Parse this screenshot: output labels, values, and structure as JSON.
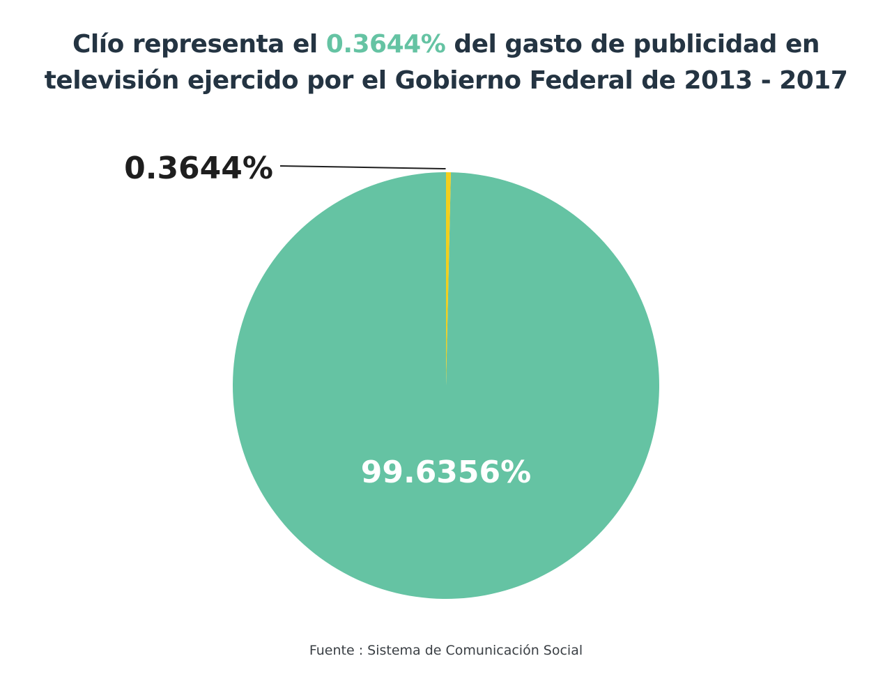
{
  "title": {
    "part1": "Clío representa el ",
    "highlight": "0.3644%",
    "part2": " del gasto de publicidad en",
    "line2": "televisión ejercido por el Gobierno Federal de  2013 - 2017"
  },
  "source": "Fuente : Sistema de Comunicación Social",
  "colors": {
    "title": "#243442",
    "highlight": "#65c3a3",
    "main_slice": "#65c3a3",
    "small_slice": "#f2cf1d",
    "callout_text": "#1e1e1e",
    "inside_label": "#ffffff"
  },
  "chart_data": {
    "type": "pie",
    "title": "Clío representa el 0.3644% del gasto de publicidad en televisión ejercido por el Gobierno Federal de 2013 - 2017",
    "categories": [
      "Clío",
      ""
    ],
    "values": [
      0.3644,
      99.6356
    ],
    "labels": [
      "0.3644%",
      "99.6356%"
    ],
    "legend": "none",
    "start": "top, clockwise"
  }
}
